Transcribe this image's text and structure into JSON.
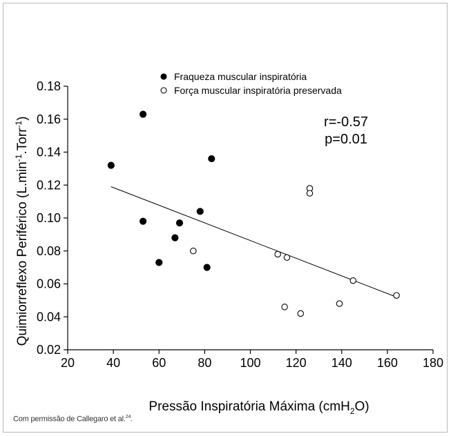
{
  "chart_data": {
    "type": "scatter",
    "xlabel_main": "Pressão Inspiratória Máxima (cmH",
    "xlabel_sub": "2",
    "xlabel_end": "O)",
    "ylabel_main": "Quimiorreflexo Periférico (L.min",
    "ylabel_sup1": "-1",
    "ylabel_mid": ".Torr",
    "ylabel_sup2": "-1",
    "ylabel_end": ")",
    "xlim": [
      20,
      180
    ],
    "ylim": [
      0.02,
      0.18
    ],
    "xticks": [
      20,
      40,
      60,
      80,
      100,
      120,
      140,
      160,
      180
    ],
    "yticks": [
      0.02,
      0.04,
      0.06,
      0.08,
      0.1,
      0.12,
      0.14,
      0.16,
      0.18
    ],
    "ytick_labels": [
      "0.02",
      "0.04",
      "0.06",
      "0.08",
      "0.10",
      "0.12",
      "0.14",
      "0.16",
      "0.18"
    ],
    "series": [
      {
        "name": "Fraqueza muscular inspiratória",
        "marker": "filled",
        "points": [
          [
            39,
            0.132
          ],
          [
            53,
            0.163
          ],
          [
            53,
            0.098
          ],
          [
            60,
            0.073
          ],
          [
            67,
            0.088
          ],
          [
            69,
            0.097
          ],
          [
            78,
            0.104
          ],
          [
            81,
            0.07
          ],
          [
            83,
            0.136
          ]
        ]
      },
      {
        "name": "Força muscular inspiratória preservada",
        "marker": "open",
        "points": [
          [
            75,
            0.08
          ],
          [
            112,
            0.078
          ],
          [
            115,
            0.046
          ],
          [
            116,
            0.076
          ],
          [
            122,
            0.042
          ],
          [
            126,
            0.118
          ],
          [
            126,
            0.115
          ],
          [
            139,
            0.048
          ],
          [
            145,
            0.062
          ],
          [
            164,
            0.053
          ]
        ]
      }
    ],
    "regression": {
      "x": [
        39,
        164
      ],
      "y": [
        0.119,
        0.052
      ]
    },
    "annotations": [
      "r=-0.57",
      "p=0.01"
    ],
    "legend_position": "top"
  },
  "caption": {
    "text": "Com permissão de Callegaro et al.",
    "ref": "24",
    "end": "."
  }
}
